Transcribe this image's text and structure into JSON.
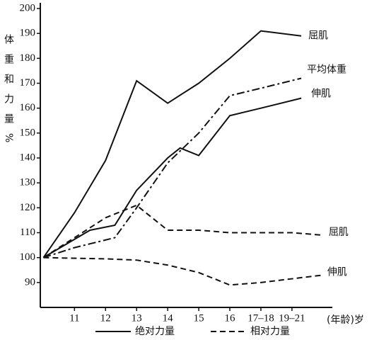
{
  "chart_data": {
    "type": "line",
    "y_label": "体重和力量%",
    "x_label": "(年龄)岁",
    "xlim": [
      9.9,
      19.3
    ],
    "ylim": [
      80,
      202
    ],
    "xticks": [
      11,
      12,
      13,
      14,
      15,
      16,
      {
        "value": 17,
        "label": "17–18"
      },
      {
        "value": 18,
        "label": "19–21"
      }
    ],
    "yticks": [
      90,
      100,
      110,
      120,
      130,
      140,
      150,
      160,
      170,
      180,
      190,
      200
    ],
    "legend": [
      {
        "name": "绝对力量",
        "style": "solid"
      },
      {
        "name": "相对力量",
        "style": "dashed"
      }
    ],
    "series": [
      {
        "name": "屈肌",
        "style": "solid",
        "color": "#111111",
        "x": [
          10,
          11,
          12,
          13,
          14,
          15,
          16,
          17,
          18.3
        ],
        "values": [
          100,
          118,
          139,
          171,
          162,
          170,
          180,
          191,
          189
        ]
      },
      {
        "name": "平均体重",
        "style": "dashdot",
        "color": "#111111",
        "x": [
          10,
          11,
          12.3,
          13,
          14,
          15,
          16,
          17,
          18.3
        ],
        "values": [
          100,
          104,
          108,
          120,
          138,
          150,
          165,
          168,
          172
        ]
      },
      {
        "name": "伸肌",
        "style": "solid",
        "color": "#111111",
        "x": [
          10,
          11.5,
          12.3,
          13,
          14,
          14.4,
          15,
          16,
          17,
          18.3
        ],
        "values": [
          100,
          111,
          113,
          127,
          140,
          144,
          141,
          157,
          160,
          164
        ]
      },
      {
        "name": "屈肌",
        "style": "dashed",
        "color": "#111111",
        "x": [
          10,
          11,
          12,
          13,
          14,
          15,
          16,
          17,
          18,
          19
        ],
        "values": [
          100,
          108,
          116,
          121,
          111,
          111,
          110,
          110,
          110,
          109
        ]
      },
      {
        "name": "伸肌",
        "style": "dashed",
        "color": "#111111",
        "x": [
          10,
          12,
          13,
          14,
          15,
          16,
          17,
          18,
          19
        ],
        "values": [
          100,
          99.5,
          99,
          97,
          94,
          89,
          90,
          91.5,
          93
        ]
      }
    ]
  }
}
